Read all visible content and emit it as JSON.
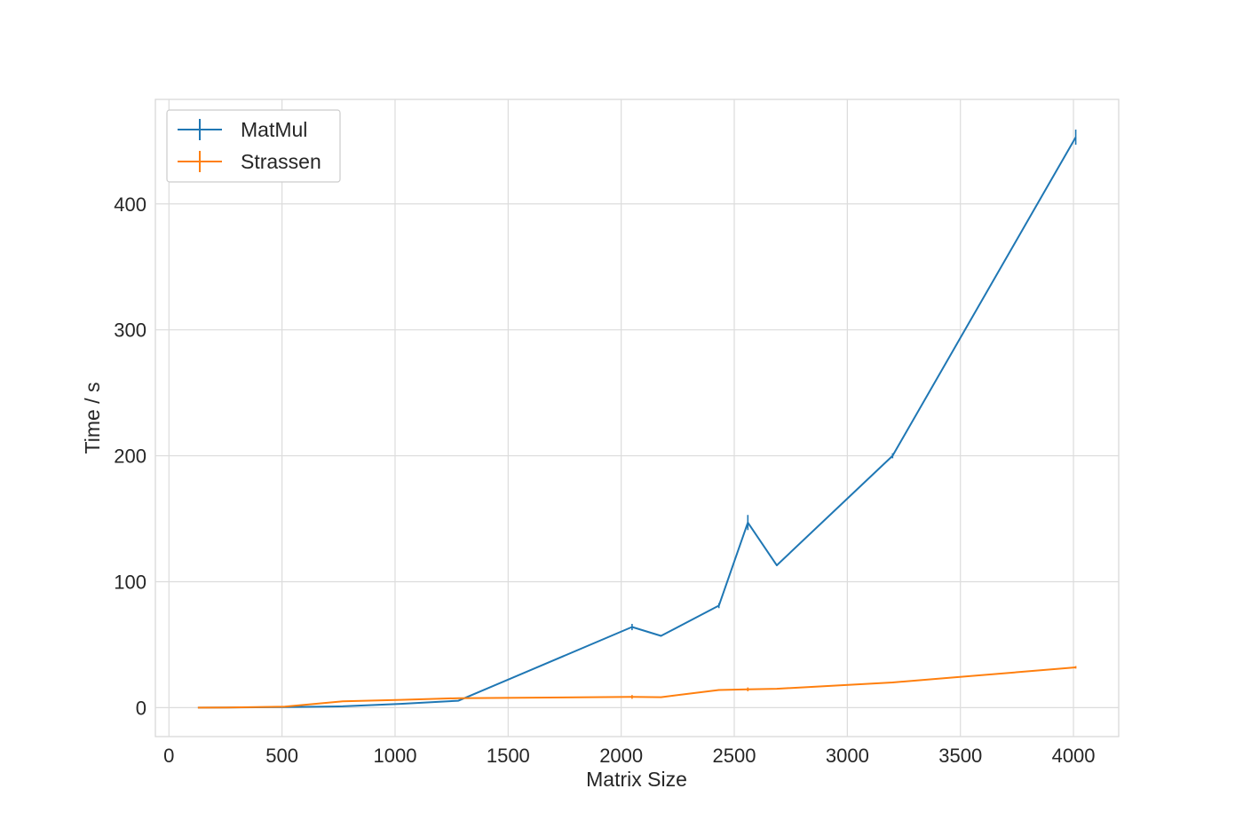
{
  "chart_data": {
    "type": "line",
    "xlabel": "Matrix Size",
    "ylabel": "Time / s",
    "xlim": [
      -60,
      4200
    ],
    "ylim": [
      -23,
      483
    ],
    "xticks": [
      0,
      500,
      1000,
      1500,
      2000,
      2500,
      3000,
      3500,
      4000
    ],
    "yticks": [
      0,
      100,
      200,
      300,
      400
    ],
    "grid": true,
    "legend_position": "top-left",
    "series": [
      {
        "name": "MatMul",
        "color": "#1f77b4",
        "points": [
          {
            "x": 128,
            "y": 0.0,
            "err": 0
          },
          {
            "x": 256,
            "y": 0.1,
            "err": 0
          },
          {
            "x": 512,
            "y": 0.4,
            "err": 0
          },
          {
            "x": 768,
            "y": 1.0,
            "err": 0
          },
          {
            "x": 1024,
            "y": 3.0,
            "err": 0
          },
          {
            "x": 1280,
            "y": 5.5,
            "err": 0.5
          },
          {
            "x": 2048,
            "y": 64,
            "err": 2.5
          },
          {
            "x": 2176,
            "y": 57,
            "err": 0.5
          },
          {
            "x": 2432,
            "y": 81,
            "err": 2
          },
          {
            "x": 2560,
            "y": 147,
            "err": 6
          },
          {
            "x": 2688,
            "y": 113,
            "err": 0.5
          },
          {
            "x": 3200,
            "y": 200,
            "err": 2
          },
          {
            "x": 4010,
            "y": 453,
            "err": 6
          }
        ]
      },
      {
        "name": "Strassen",
        "color": "#ff7f0e",
        "points": [
          {
            "x": 128,
            "y": 0.0,
            "err": 0
          },
          {
            "x": 256,
            "y": 0.1,
            "err": 0
          },
          {
            "x": 512,
            "y": 0.8,
            "err": 0
          },
          {
            "x": 768,
            "y": 5.0,
            "err": 0
          },
          {
            "x": 1024,
            "y": 6.2,
            "err": 0
          },
          {
            "x": 1280,
            "y": 7.5,
            "err": 0
          },
          {
            "x": 2048,
            "y": 8.5,
            "err": 1.5
          },
          {
            "x": 2176,
            "y": 8.3,
            "err": 0
          },
          {
            "x": 2432,
            "y": 14.0,
            "err": 0.5
          },
          {
            "x": 2560,
            "y": 14.5,
            "err": 1.5
          },
          {
            "x": 2688,
            "y": 15.0,
            "err": 0
          },
          {
            "x": 3200,
            "y": 20.0,
            "err": 0.5
          },
          {
            "x": 4010,
            "y": 32.0,
            "err": 1
          }
        ]
      }
    ]
  }
}
